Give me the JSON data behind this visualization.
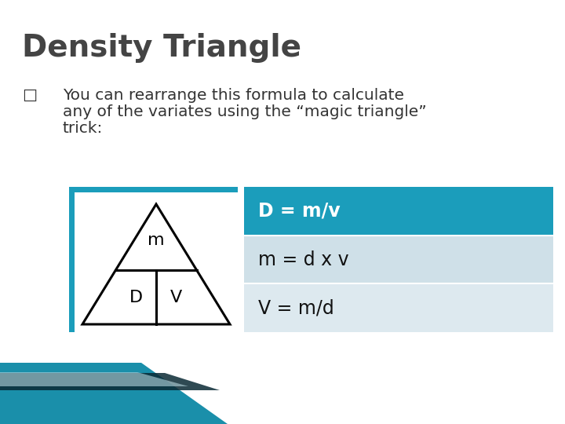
{
  "title": "Density Triangle",
  "title_fontsize": 28,
  "title_color": "#444444",
  "title_fontweight": "bold",
  "bullet_char": "□",
  "bullet_text_line1": "You can rearrange this formula to calculate",
  "bullet_text_line2": "any of the variates using the “magic triangle”",
  "bullet_text_line3": "trick:",
  "bullet_fontsize": 14.5,
  "bullet_color": "#333333",
  "table_header_text": "D = m/v",
  "table_row2_text": "m = d x v",
  "table_row3_text": "V = m/d",
  "table_header_bg": "#1b9dbb",
  "table_row2_bg": "#cfe0e8",
  "table_row3_bg": "#dde9ef",
  "table_header_color": "#ffffff",
  "table_row_color": "#111111",
  "table_fontsize": 17,
  "teal_border_color": "#1b9dbb",
  "bg_color": "#ffffff",
  "bottom_teal_color": "#1a8faa",
  "bottom_dark_color": "#0a2a35",
  "bottom_light_color": "#b8d8e0"
}
